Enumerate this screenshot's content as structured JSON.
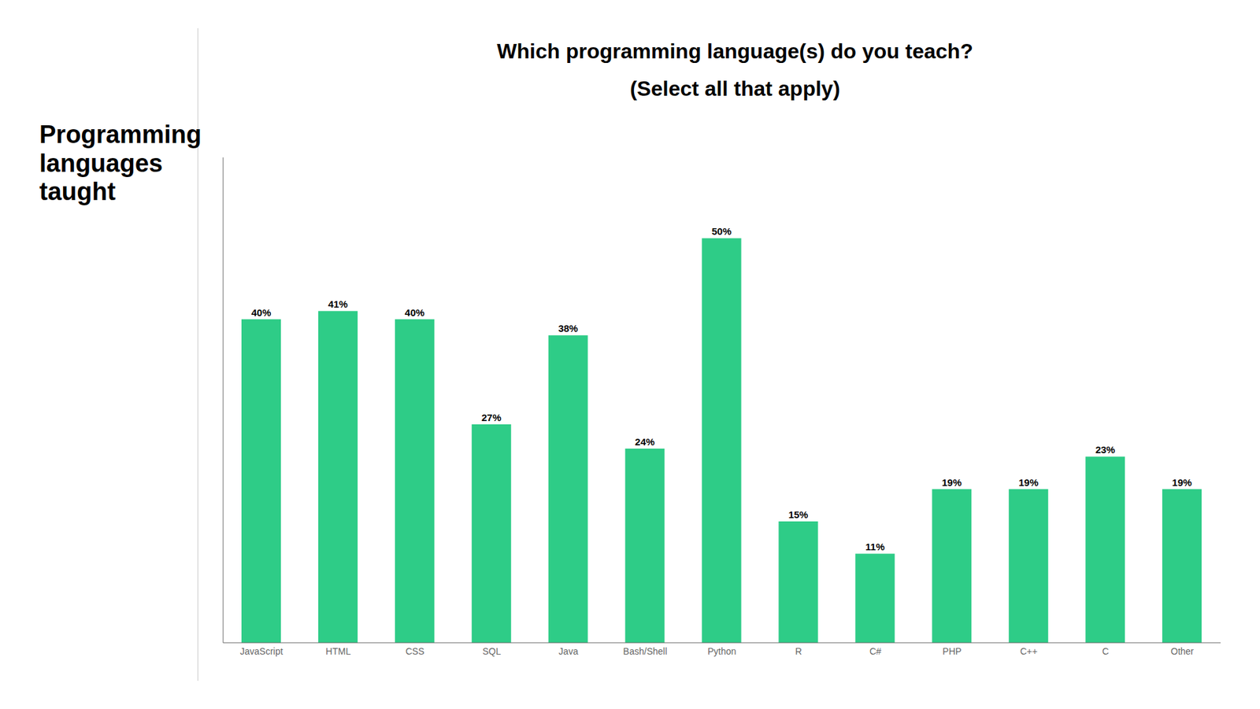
{
  "chart_data": {
    "type": "bar",
    "title": "Which programming language(s) do you teach?",
    "subtitle": "(Select all that apply)",
    "annotations": [
      "Programming\nlanguages\ntaught"
    ],
    "categories": [
      "JavaScript",
      "HTML",
      "CSS",
      "SQL",
      "Java",
      "Bash/Shell",
      "Python",
      "R",
      "C#",
      "PHP",
      "C++",
      "C",
      "Other"
    ],
    "values": [
      40,
      41,
      40,
      27,
      38,
      24,
      50,
      15,
      11,
      19,
      19,
      23,
      19
    ],
    "value_labels": [
      "40%",
      "41%",
      "40%",
      "27%",
      "38%",
      "24%",
      "50%",
      "15%",
      "11%",
      "19%",
      "19%",
      "23%",
      "19%"
    ],
    "color": "#2ecc87",
    "ylim": [
      0,
      60
    ],
    "data_labels": true,
    "tick_labels": "x",
    "grid": false
  }
}
